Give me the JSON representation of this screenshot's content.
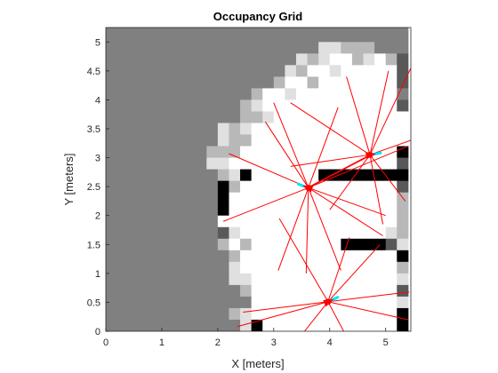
{
  "chart_data": {
    "type": "heatmap",
    "title": "Occupancy Grid",
    "xlabel": "X [meters]",
    "ylabel": "Y [meters]",
    "xlim": [
      0,
      5.45
    ],
    "ylim": [
      0,
      5.25
    ],
    "xticks": [
      "0",
      "1",
      "2",
      "3",
      "4",
      "5"
    ],
    "yticks": [
      "0",
      "0.5",
      "1",
      "1.5",
      "2",
      "2.5",
      "3",
      "3.5",
      "4",
      "4.5",
      "5"
    ],
    "cell_size_m": 0.2,
    "cmap": "gray (0 = occupied/black, 1 = free/white)",
    "unknown_value": 0.5,
    "grid": false,
    "grid_rows_top_to_bottom": [
      "aaaaaaaaaaaaaaaaaaaaaaaaaaa",
      "aaaaaaaaaaaaaaaaaaaaaaaaaaa",
      "aaaaaaaaaaaaaaaaaaaaaaaaaaa",
      "aaaaaaaaaaaaaaaaaaaaaaaaaaa",
      "aaaaaaaaaaaaaaaaaaaaaaaaaaa",
      "aaaaaaaaaaaaaaaaaaaaaaaaaaa",
      "aaaaaaaaaaaaaaaaaaaaaaaaaaa",
      "aaaaaaaaaaaaaaaaaaaaaaaaaaa",
      "aaaaaaaaaaaaaaaaaaaaaaaaaaa",
      "aaaaaaaaaaaaaaaaaaaaaaaaaaa",
      "aaaaaaaaaaaaaaaaaaaaaaaaaaa",
      "aaaaaaaaaaaaaaaaaaaaaaaaaaa",
      "aaaaaaaaaaaaaaaaaaaaaaaaaaa",
      "aaaaaaaaaaaaaaaaaaaaaaaaaaa",
      "aaaaaaaaaaaaaaaaaaaaaaaaaaa",
      "aaaaaaaaaaaaaaaaaaaaaaaaaaa",
      "aaaaaaaaaaaaaaaaaaaaaaaaaaa",
      "aaaaaaaaaaaaaaaaaaaaaaaaaaa",
      "aaaaaaaaaaaaaaaaaaaaaaaaaaa",
      "aaaaaaaaaaaaaaaaaaaaaaaaaaa",
      "aaaaaaaaaaaaaaaaaaaaaaaaaaa",
      "aaaaaaaaaaaaaaaaaaaaaaaaaaa",
      "aaaaaaaaaaaaaaaaaaaaaaaaaaa",
      "aaaaaaaaaaaaaaaaaaaaaaaaaaa",
      "aaaaaaaaaaaaaaaaaaaaaaaaaaa",
      "aaaaaaaaaaaaaaaaaaaaaaaaaaa",
      "aaaaaaaaaaaaaaaaaaaaaaaaaaa"
    ],
    "grid_rows_top_to_bottom_note": "each char is a 0.2 m cell from x=0 (left) to x=5.4; row 0 is y=5.2..5.4",
    "map_rows_top_to_bottom": [
      "aaaaaaaaaaaaaaaaaaaaaaaaaaa",
      "aaaaaaaaaaaaaaaaaaaaaaaaaaa",
      "aaaaaaaaaaaaaaaaaaaaaaaaaaa",
      "aaaaaaaaaaaaaaaaaaaaaaaaaaa",
      "aaaaaaaaaaaaaaaaaaaaaaaaaaa",
      "aaaaaaaaaaaaaaaaaaaaaaaaaaa",
      "aaaaaaaaaaaaaaaaaaaaaaaaaaa",
      "aaaaaaaaaaaaaaaaaaaaaaaaaaa",
      "aaaaaaaaaaaaaaaaaaaaaaaaaaa",
      "aaaaaaaaaaaaaaaaaaaaaaaaaaa"
    ],
    "occupancy_rows_top_to_bottom": [
      "aaaaaaaaaaaaaaaaaaaaaaaaaaa",
      "aaaaaaaaaaaaaaaaaaaaaaaaaaa",
      "aaaaaaaaaaaaaaaaaaaaaaaaaaa",
      "aaaaaaaaaaaaaaaaaaaaaaaaaaa",
      "aaaaaaaaaaaaaaaaaaaaaaaaaaa",
      "aaaaaaaaaaaaaaaaaaaaaaaaaaa",
      "aaaaaaaaaaaaaaaaaaaaaaaaaaa",
      "aaaaaaaaaaaaaaaaaaaaaaaaaaa",
      "aaaaaaaaaaaaaaaaaaaaaaaaaaa",
      "aaaaaaaaaaaaaaaaaaaaaaaaaaa"
    ],
    "cells": {
      "legend": {
        "a": 0.5,
        "w": 1.0,
        "l": 0.88,
        "m": 0.72,
        "d": 0.35,
        "k": 0.0
      },
      "rows_top_to_bottom": [
        "aaaaaaaaaaaaaaaaaaaaaaaaaaa",
        "aaaaaaaaaaaaaaaaaaaaaaaaaaa",
        "aaaaaaaaaaaaaaaaaaallmmmaaa",
        "aaaaaaaaaaaaaaaaalmlwwmlwmd",
        "aaaaaaaaaaaaaaaalmwwlwwwwwd",
        "aaaaaaaaaaaaaaamwwmwwwwwwwd",
        "aaaaaaaaaaaaamwwlwwwwwwwwwa",
        "aaaaaaaaaaaamlwwwwwwwwwwwwd",
        "aaaaaaaaaaaammlwwwwwwwwwwww",
        "aaaaaaaaaalmlwwwwwwwwwwwwww",
        "aaaaaaaaaalmmwwwwwwwwwwwwww",
        "aaaaaaaaammmwwwwwwwwwwwwwwk",
        "aaaaaaaaallwwwwwwwwwwwwwwwd",
        "aaaaaaaaaamlkwwwwwwkkkkkkkk",
        "aaaaaaaaaakmwwwwwwwwwwwwwwd",
        "aaaaaaaaaakwwwwwwwwwwwwwwwm",
        "aaaaaaaaaakwwwwwwwwwwwwwwwm",
        "aaaaaaaaaawwwwwwwwwwwwwwwwm",
        "aaaaaaaaaadlwwwwwwwwwwwwwlm",
        "aaaaaaaaaamwmwwwwwwwwkkkkdl",
        "aaaaaaaaaaamwwwwwwwwwwwwwwk",
        "aaaaaaaaaaalwwwwwwwwwwwwwwm",
        "aaaaaaaaaaallwwwwwwwwwwwwwl",
        "aaaaaaaaaaaamwwwwwwwwwwwwwd",
        "aaaaaaaaaaaaawwwwwwwwwwwwwl",
        "aaaaaaaaaaamlwwwwwwwwwwwwwk",
        "aaaaaaaaaaaalkwwwwwwwwwwwwk"
      ]
    },
    "robot_poses": [
      {
        "x": 3.62,
        "y": 2.48,
        "heading_deg": 160
      },
      {
        "x": 4.72,
        "y": 3.05,
        "heading_deg": 10
      },
      {
        "x": 3.97,
        "y": 0.51,
        "heading_deg": 25
      }
    ],
    "lidar_rays": [
      {
        "from": [
          3.62,
          2.48
        ],
        "to": [
          2.2,
          3.07
        ]
      },
      {
        "from": [
          3.62,
          2.48
        ],
        "to": [
          2.1,
          1.9
        ]
      },
      {
        "from": [
          3.62,
          2.48
        ],
        "to": [
          3.08,
          1.05
        ]
      },
      {
        "from": [
          3.62,
          2.48
        ],
        "to": [
          3.58,
          1.0
        ]
      },
      {
        "from": [
          3.62,
          2.48
        ],
        "to": [
          4.2,
          1.05
        ]
      },
      {
        "from": [
          3.62,
          2.48
        ],
        "to": [
          4.95,
          1.65
        ]
      },
      {
        "from": [
          3.62,
          2.48
        ],
        "to": [
          5.0,
          2.0
        ]
      },
      {
        "from": [
          3.62,
          2.48
        ],
        "to": [
          5.4,
          3.2
        ]
      },
      {
        "from": [
          3.62,
          2.48
        ],
        "to": [
          3.0,
          3.95
        ]
      },
      {
        "from": [
          3.62,
          2.48
        ],
        "to": [
          4.15,
          3.87
        ]
      },
      {
        "from": [
          3.62,
          2.48
        ],
        "to": [
          2.85,
          3.62
        ]
      },
      {
        "from": [
          3.62,
          2.48
        ],
        "to": [
          4.85,
          3.1
        ]
      },
      {
        "from": [
          4.72,
          3.05
        ],
        "to": [
          3.3,
          3.95
        ]
      },
      {
        "from": [
          4.72,
          3.05
        ],
        "to": [
          4.3,
          4.4
        ]
      },
      {
        "from": [
          4.72,
          3.05
        ],
        "to": [
          5.05,
          4.5
        ]
      },
      {
        "from": [
          4.72,
          3.05
        ],
        "to": [
          5.45,
          4.55
        ]
      },
      {
        "from": [
          4.72,
          3.05
        ],
        "to": [
          5.45,
          3.3
        ]
      },
      {
        "from": [
          4.72,
          3.05
        ],
        "to": [
          5.35,
          2.25
        ]
      },
      {
        "from": [
          4.72,
          3.05
        ],
        "to": [
          4.95,
          1.85
        ]
      },
      {
        "from": [
          4.72,
          3.05
        ],
        "to": [
          4.0,
          2.1
        ]
      },
      {
        "from": [
          4.72,
          3.05
        ],
        "to": [
          3.58,
          2.47
        ]
      },
      {
        "from": [
          4.72,
          3.05
        ],
        "to": [
          3.3,
          2.85
        ]
      },
      {
        "from": [
          3.97,
          0.51
        ],
        "to": [
          2.45,
          0.33
        ]
      },
      {
        "from": [
          3.97,
          0.51
        ],
        "to": [
          2.35,
          0.08
        ]
      },
      {
        "from": [
          3.97,
          0.51
        ],
        "to": [
          3.1,
          1.95
        ]
      },
      {
        "from": [
          3.97,
          0.51
        ],
        "to": [
          4.35,
          1.62
        ]
      },
      {
        "from": [
          3.97,
          0.51
        ],
        "to": [
          4.9,
          1.5
        ]
      },
      {
        "from": [
          3.97,
          0.51
        ],
        "to": [
          5.42,
          0.68
        ]
      },
      {
        "from": [
          3.97,
          0.51
        ],
        "to": [
          4.25,
          0.0
        ]
      },
      {
        "from": [
          3.97,
          0.51
        ],
        "to": [
          3.55,
          0.0
        ]
      },
      {
        "from": [
          3.97,
          0.51
        ],
        "to": [
          5.4,
          0.2
        ]
      }
    ],
    "colors": {
      "rays": "#ff0000",
      "robot": "#ff0000",
      "heading": "#00e5ff"
    }
  }
}
